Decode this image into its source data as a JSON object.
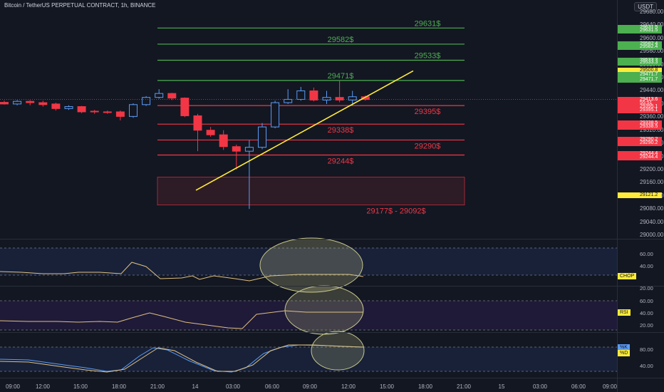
{
  "header": {
    "title": "Bitcoin / TetherUS PERPETUAL CONTRACT, 1h, BINANCE",
    "currency": "USDT"
  },
  "colors": {
    "background": "#131722",
    "up": "#5b9cf6",
    "down": "#f23645",
    "resistance": "#4caf50",
    "support": "#f23645",
    "trendline": "#ffeb3b",
    "indicator_line": "#e0c080"
  },
  "price_axis": {
    "ticks": [
      "29680.00",
      "29640.00",
      "29600.00",
      "29560.00",
      "29520.00",
      "29480.00",
      "29440.00",
      "29400.00",
      "29360.00",
      "29320.00",
      "29280.00",
      "29240.00",
      "29200.00",
      "29160.00",
      "29120.00",
      "29080.00",
      "29040.00",
      "29000.00"
    ],
    "tags": [
      {
        "label": "29631.5",
        "color": "#4caf50",
        "price": 29631.5
      },
      {
        "label": "29631.5",
        "color": "#4caf50",
        "price": 29624
      },
      {
        "label": "29582.4",
        "color": "#4caf50",
        "price": 29582.4
      },
      {
        "label": "29582.4",
        "color": "#4caf50",
        "price": 29574
      },
      {
        "label": "29533.3",
        "color": "#4caf50",
        "price": 29533.3
      },
      {
        "label": "29533.3",
        "color": "#4caf50",
        "price": 29525
      },
      {
        "label": "29500.8",
        "color": "#ffeb3b",
        "price": 29500.8
      },
      {
        "label": "29471.7",
        "color": "#4caf50",
        "price": 29488
      },
      {
        "label": "29471.7",
        "color": "#4caf50",
        "price": 29474
      },
      {
        "label": "29413.6",
        "color": "#f23645",
        "price": 29413.6
      },
      {
        "label": "55:51",
        "color": "#f23645",
        "price": 29403
      },
      {
        "label": "29395.1",
        "color": "#f23645",
        "price": 29392
      },
      {
        "label": "29395.1",
        "color": "#f23645",
        "price": 29381
      },
      {
        "label": "29338.5",
        "color": "#f23645",
        "price": 29341
      },
      {
        "label": "29338.5",
        "color": "#f23645",
        "price": 29330
      },
      {
        "label": "29290.2",
        "color": "#f23645",
        "price": 29291
      },
      {
        "label": "29290.2",
        "color": "#f23645",
        "price": 29280
      },
      {
        "label": "29244.4",
        "color": "#f23645",
        "price": 29247
      },
      {
        "label": "29244.4",
        "color": "#f23645",
        "price": 29236
      },
      {
        "label": "29121.2",
        "color": "#ffeb3b",
        "price": 29121.2
      }
    ]
  },
  "levels": [
    {
      "label": "29631$",
      "price": 29631.5,
      "kind": "res"
    },
    {
      "label": "29582$",
      "price": 29582.4,
      "kind": "res"
    },
    {
      "label": "29533$",
      "price": 29533.3,
      "kind": "res"
    },
    {
      "label": "29471$",
      "price": 29471.7,
      "kind": "res"
    },
    {
      "label": "29395$",
      "price": 29395.1,
      "kind": "sup"
    },
    {
      "label": "29338$",
      "price": 29338.5,
      "kind": "sup"
    },
    {
      "label": "29290$",
      "price": 29290.2,
      "kind": "sup"
    },
    {
      "label": "29244$",
      "price": 29244.4,
      "kind": "sup"
    }
  ],
  "zone": {
    "label": "29177$ - 29092$",
    "top": 29177,
    "bottom": 29092
  },
  "trendline": {
    "from": [
      0,
      29137
    ],
    "to": [
      1,
      29500.8
    ]
  },
  "candles": [
    {
      "o": 29405,
      "c": 29400,
      "h": 29410,
      "l": 29398
    },
    {
      "o": 29400,
      "c": 29408,
      "h": 29412,
      "l": 29396
    },
    {
      "o": 29408,
      "c": 29404,
      "h": 29412,
      "l": 29396
    },
    {
      "o": 29404,
      "c": 29398,
      "h": 29410,
      "l": 29392
    },
    {
      "o": 29400,
      "c": 29386,
      "h": 29404,
      "l": 29380
    },
    {
      "o": 29386,
      "c": 29392,
      "h": 29396,
      "l": 29382
    },
    {
      "o": 29392,
      "c": 29376,
      "h": 29394,
      "l": 29372
    },
    {
      "o": 29378,
      "c": 29376,
      "h": 29382,
      "l": 29370
    },
    {
      "o": 29376,
      "c": 29374,
      "h": 29380,
      "l": 29370
    },
    {
      "o": 29376,
      "c": 29362,
      "h": 29380,
      "l": 29350
    },
    {
      "o": 29362,
      "c": 29398,
      "h": 29402,
      "l": 29358
    },
    {
      "o": 29398,
      "c": 29420,
      "h": 29424,
      "l": 29394
    },
    {
      "o": 29420,
      "c": 29432,
      "h": 29445,
      "l": 29416
    },
    {
      "o": 29432,
      "c": 29418,
      "h": 29434,
      "l": 29412
    },
    {
      "o": 29418,
      "c": 29364,
      "h": 29420,
      "l": 29360
    },
    {
      "o": 29364,
      "c": 29320,
      "h": 29370,
      "l": 29256
    },
    {
      "o": 29320,
      "c": 29306,
      "h": 29330,
      "l": 29300
    },
    {
      "o": 29306,
      "c": 29270,
      "h": 29320,
      "l": 29260
    },
    {
      "o": 29270,
      "c": 29256,
      "h": 29276,
      "l": 29200
    },
    {
      "o": 29256,
      "c": 29268,
      "h": 29290,
      "l": 29080
    },
    {
      "o": 29268,
      "c": 29330,
      "h": 29342,
      "l": 29262
    },
    {
      "o": 29330,
      "c": 29404,
      "h": 29410,
      "l": 29326
    },
    {
      "o": 29404,
      "c": 29414,
      "h": 29445,
      "l": 29400
    },
    {
      "o": 29414,
      "c": 29440,
      "h": 29452,
      "l": 29410
    },
    {
      "o": 29440,
      "c": 29412,
      "h": 29450,
      "l": 29408
    },
    {
      "o": 29412,
      "c": 29420,
      "h": 29440,
      "l": 29400
    },
    {
      "o": 29420,
      "c": 29412,
      "h": 29472,
      "l": 29405
    },
    {
      "o": 29412,
      "c": 29422,
      "h": 29440,
      "l": 29395
    },
    {
      "o": 29422,
      "c": 29413.6,
      "h": 29426,
      "l": 29410
    }
  ],
  "indicators": {
    "chop": {
      "label": "CHOP",
      "ticks": [
        "60.00",
        "40.00",
        "20.00"
      ]
    },
    "rsi": {
      "label": "RSI",
      "ticks": [
        "60.00",
        "40.00",
        "20.00"
      ]
    },
    "stoch": {
      "k_label": "%K",
      "d_label": "%D",
      "ticks": [
        "80.00",
        "40.00"
      ]
    }
  },
  "time_axis": [
    "09:00",
    "12:00",
    "15:00",
    "18:00",
    "21:00",
    "14",
    "03:00",
    "06:00",
    "09:00",
    "12:00",
    "15:00",
    "18:00",
    "21:00",
    "15",
    "03:00",
    "06:00",
    "09:00"
  ]
}
